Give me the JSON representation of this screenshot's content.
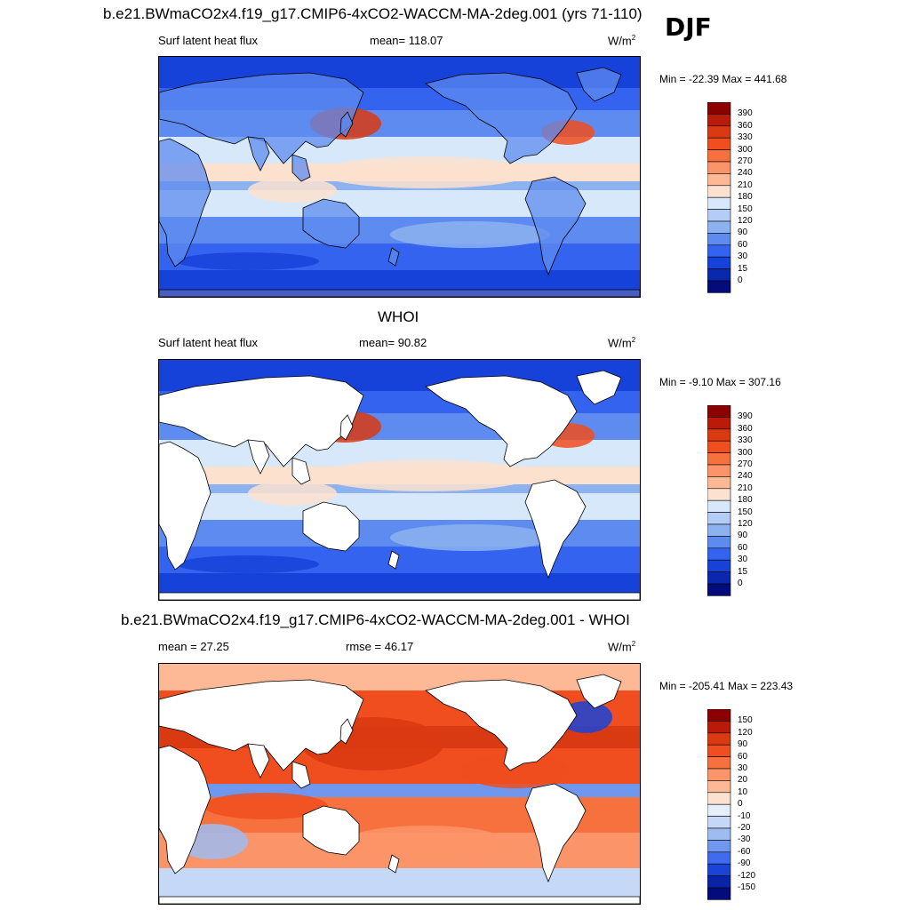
{
  "main_title": "b.e21.BWmaCO2x4.f19_g17.CMIP6-4xCO2-WACCM-MA-2deg.001 (yrs 71-110)",
  "season": "DJF",
  "panels": [
    {
      "id": "model",
      "title": "",
      "variable": "Surf latent heat flux",
      "stat1": "mean= 118.07",
      "stat2": "",
      "unit": "W/m",
      "unit_exp": "2",
      "minmax": "Min = -22.39 Max = 441.68",
      "levels": [
        "390",
        "360",
        "330",
        "300",
        "270",
        "240",
        "210",
        "180",
        "150",
        "120",
        "90",
        "60",
        "30",
        "15",
        "0"
      ],
      "colors": [
        "#8b0000",
        "#b81b0a",
        "#d93a12",
        "#f04e1f",
        "#f7713f",
        "#fb9468",
        "#fdb896",
        "#fde1cf",
        "#d8e8fb",
        "#b3cdf6",
        "#8db2f0",
        "#5e8bef",
        "#3464ef",
        "#1742d9",
        "#0a28ae",
        "#040b7a"
      ],
      "mask_land": false
    },
    {
      "id": "obs",
      "title": "WHOI",
      "variable": "Surf latent heat flux",
      "stat1": "mean=  90.82",
      "stat2": "",
      "unit": "W/m",
      "unit_exp": "2",
      "minmax": "Min =  -9.10 Max = 307.16",
      "levels": [
        "390",
        "360",
        "330",
        "300",
        "270",
        "240",
        "210",
        "180",
        "150",
        "120",
        "90",
        "60",
        "30",
        "15",
        "0"
      ],
      "colors": [
        "#8b0000",
        "#b81b0a",
        "#d93a12",
        "#f04e1f",
        "#f7713f",
        "#fb9468",
        "#fdb896",
        "#fde1cf",
        "#d8e8fb",
        "#b3cdf6",
        "#8db2f0",
        "#5e8bef",
        "#3464ef",
        "#1742d9",
        "#0a28ae",
        "#040b7a"
      ],
      "mask_land": true
    },
    {
      "id": "diff",
      "title": "b.e21.BWmaCO2x4.f19_g17.CMIP6-4xCO2-WACCM-MA-2deg.001 - WHOI",
      "variable": "",
      "stat1": "mean =  27.25",
      "stat2": "rmse =  46.17",
      "unit": "W/m",
      "unit_exp": "2",
      "minmax": "Min = -205.41 Max = 223.43",
      "levels": [
        "150",
        "120",
        "90",
        "60",
        "30",
        "20",
        "10",
        "0",
        "-10",
        "-20",
        "-30",
        "-60",
        "-90",
        "-120",
        "-150"
      ],
      "colors": [
        "#8b0000",
        "#b81b0a",
        "#d93a12",
        "#f04e1f",
        "#f7713f",
        "#fb9468",
        "#fdb896",
        "#fde1cf",
        "#e6eefb",
        "#c6d8f7",
        "#9ebcf2",
        "#6f97ee",
        "#3f6cef",
        "#1a44d8",
        "#0a24a8",
        "#040b7a"
      ],
      "mask_land": true
    }
  ],
  "icons": {
    "coastline": "coastline-outline"
  }
}
